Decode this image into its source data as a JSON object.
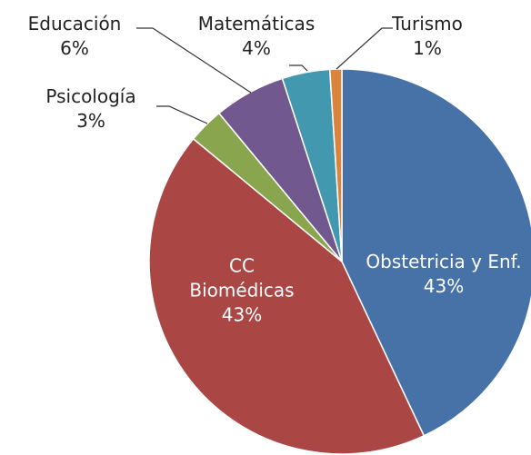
{
  "chart_data": {
    "type": "pie",
    "categories": [
      "Obstetricia y Enf.",
      "CC Biomédicas",
      "Psicología",
      "Educación",
      "Matemáticas",
      "Turismo"
    ],
    "values": [
      43,
      43,
      3,
      6,
      4,
      1
    ],
    "value_labels": [
      "43%",
      "43%",
      "3%",
      "6%",
      "4%",
      "1%"
    ],
    "colors": [
      "#4672a8",
      "#aa4644",
      "#89a54e",
      "#71588f",
      "#4198af",
      "#db843d"
    ]
  }
}
